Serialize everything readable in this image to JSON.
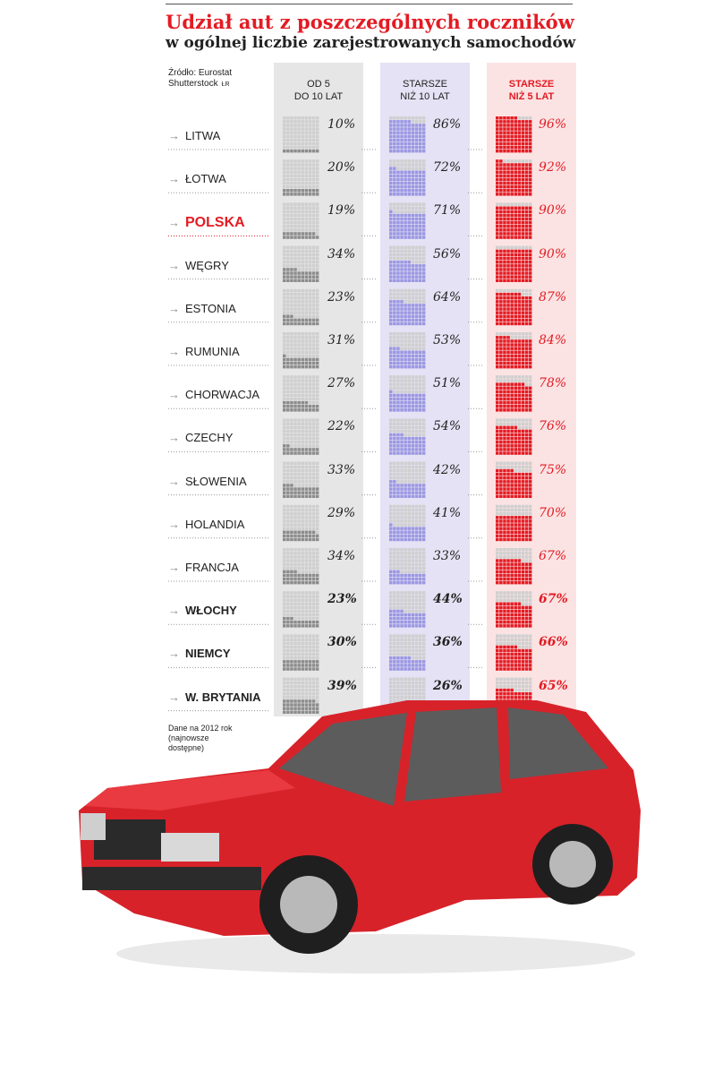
{
  "header": {
    "title": "Udział aut z poszczególnych roczników",
    "subtitle": "w ogólnej liczbie zarejestrowanych samochodów",
    "source_line1": "Źródło: Eurostat",
    "source_line2": "Shutterstock",
    "source_credit": "ŁR"
  },
  "footnote": {
    "line1": "Dane na 2012 rok",
    "line2": "(najnowsze",
    "line3": "dostępne)"
  },
  "colors": {
    "gray_column": "#e6e6e6",
    "blue_column": "#e4e2f4",
    "red_column": "#fbe3e3",
    "gray_dot": "#8c8c8c",
    "blue_dot": "#9b97e2",
    "red_dot": "#e31b23",
    "empty_dot": "#cfcfcf",
    "highlight": "#e31b23"
  },
  "chart_data": {
    "type": "table",
    "columns": [
      {
        "head_line1": "OD 5",
        "head_line2": "DO 10 LAT"
      },
      {
        "head_line1": "STARSZE",
        "head_line2": "NIŻ 10 LAT"
      },
      {
        "head_line1": "STARSZE",
        "head_line2": "NIŻ 5 LAT"
      }
    ],
    "categories": [
      "LITWA",
      "ŁOTWA",
      "POLSKA",
      "WĘGRY",
      "ESTONIA",
      "RUMUNIA",
      "CHORWACJA",
      "CZECHY",
      "SŁOWENIA",
      "HOLANDIA",
      "FRANCJA",
      "WŁOCHY",
      "NIEMCY",
      "W. BRYTANIA"
    ],
    "series": [
      {
        "name": "OD 5 DO 10 LAT",
        "values": [
          10,
          20,
          19,
          34,
          23,
          31,
          27,
          22,
          33,
          29,
          34,
          23,
          30,
          39
        ],
        "labels": [
          "10%",
          "20%",
          "19%",
          "34%",
          "23%",
          "31%",
          "27%",
          "22%",
          "33%",
          "29%",
          "34%",
          "23%",
          "30%",
          "39%"
        ]
      },
      {
        "name": "STARSZE NIŻ 10 LAT",
        "values": [
          86,
          72,
          71,
          56,
          64,
          53,
          51,
          54,
          42,
          41,
          33,
          44,
          36,
          26
        ],
        "labels": [
          "86%",
          "72%",
          "71%",
          "56%",
          "64%",
          "53%",
          "51%",
          "54%",
          "42%",
          "41%",
          "33%",
          "44%",
          "36%",
          "26%"
        ]
      },
      {
        "name": "STARSZE NIŻ 5 LAT",
        "values": [
          96,
          92,
          90,
          90,
          87,
          84,
          78,
          76,
          75,
          70,
          67,
          67,
          66,
          65
        ],
        "labels": [
          "96%",
          "92%",
          "90%",
          "90%",
          "87%",
          "84%",
          "78%",
          "76%",
          "75%",
          "70%",
          "67%",
          "67%",
          "66%",
          "65%"
        ]
      }
    ],
    "highlighted_category": "POLSKA",
    "bold_categories": [
      "WŁOCHY",
      "NIEMCY",
      "W. BRYTANIA"
    ],
    "unit": "%",
    "ylim": [
      0,
      100
    ]
  }
}
